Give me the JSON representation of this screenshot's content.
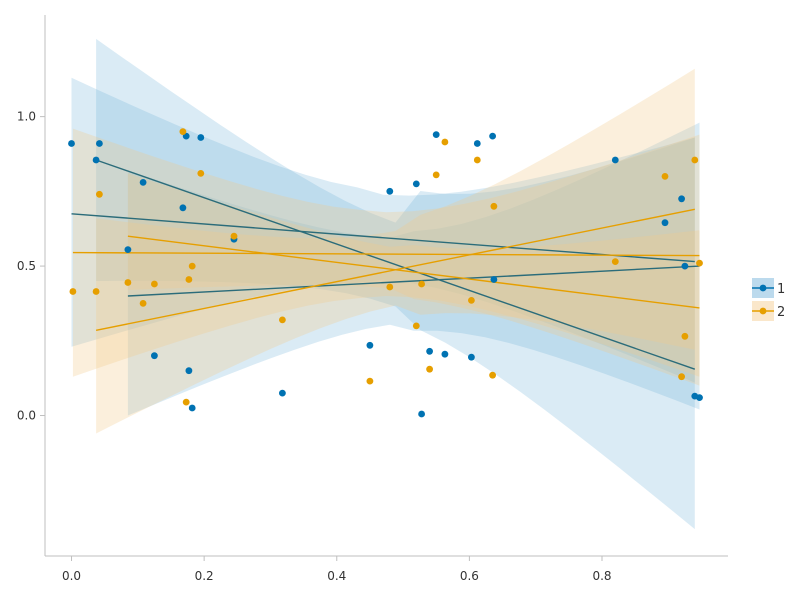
{
  "chart_data": {
    "type": "scatter",
    "xlim": [
      -0.04,
      0.99
    ],
    "ylim": [
      -0.47,
      1.34
    ],
    "x_ticks": [
      0.0,
      0.2,
      0.4,
      0.6,
      0.8
    ],
    "x_tick_labels": [
      "0.0",
      "0.2",
      "0.4",
      "0.6",
      "0.8"
    ],
    "y_ticks": [
      0.0,
      0.5,
      1.0
    ],
    "y_tick_labels": [
      "0.0",
      "0.5",
      "1.0"
    ],
    "grid": false,
    "legend_position": "right",
    "series": [
      {
        "name": "1",
        "color": "#0072b2",
        "points": [
          [
            0.0,
            0.91
          ],
          [
            0.037,
            0.855
          ],
          [
            0.042,
            0.91
          ],
          [
            0.085,
            0.555
          ],
          [
            0.108,
            0.78
          ],
          [
            0.125,
            0.2
          ],
          [
            0.168,
            0.695
          ],
          [
            0.173,
            0.935
          ],
          [
            0.177,
            0.15
          ],
          [
            0.182,
            0.025
          ],
          [
            0.195,
            0.93
          ],
          [
            0.245,
            0.59
          ],
          [
            0.318,
            0.075
          ],
          [
            0.45,
            0.235
          ],
          [
            0.48,
            0.75
          ],
          [
            0.52,
            0.775
          ],
          [
            0.528,
            0.005
          ],
          [
            0.54,
            0.215
          ],
          [
            0.55,
            0.94
          ],
          [
            0.563,
            0.205
          ],
          [
            0.603,
            0.195
          ],
          [
            0.612,
            0.91
          ],
          [
            0.635,
            0.935
          ],
          [
            0.637,
            0.455
          ],
          [
            0.82,
            0.855
          ],
          [
            0.895,
            0.645
          ],
          [
            0.92,
            0.725
          ],
          [
            0.925,
            0.5
          ],
          [
            0.94,
            0.065
          ],
          [
            0.947,
            0.06
          ]
        ],
        "fits": [
          {
            "x": [
              0.0,
              0.94
            ],
            "y": [
              0.675,
              0.515
            ],
            "band_upper": [
              1.13,
              0.93
            ],
            "band_lower": [
              0.23,
              0.11
            ]
          },
          {
            "x": [
              0.037,
              0.94
            ],
            "y": [
              0.855,
              0.155
            ],
            "band_upper": [
              1.26,
              0.93
            ],
            "band_lower": [
              0.45,
              -0.38
            ]
          },
          {
            "x": [
              0.085,
              0.947
            ],
            "y": [
              0.4,
              0.5
            ],
            "band_upper": [
              0.82,
              0.98
            ],
            "band_lower": [
              0.0,
              0.02
            ]
          }
        ]
      },
      {
        "name": "2",
        "color": "#e69f00",
        "points": [
          [
            0.002,
            0.415
          ],
          [
            0.037,
            0.415
          ],
          [
            0.042,
            0.74
          ],
          [
            0.085,
            0.445
          ],
          [
            0.108,
            0.375
          ],
          [
            0.125,
            0.44
          ],
          [
            0.168,
            0.95
          ],
          [
            0.173,
            0.045
          ],
          [
            0.177,
            0.455
          ],
          [
            0.182,
            0.5
          ],
          [
            0.195,
            0.81
          ],
          [
            0.245,
            0.6
          ],
          [
            0.318,
            0.32
          ],
          [
            0.45,
            0.115
          ],
          [
            0.48,
            0.43
          ],
          [
            0.52,
            0.3
          ],
          [
            0.528,
            0.44
          ],
          [
            0.54,
            0.155
          ],
          [
            0.55,
            0.805
          ],
          [
            0.563,
            0.915
          ],
          [
            0.603,
            0.385
          ],
          [
            0.612,
            0.855
          ],
          [
            0.635,
            0.135
          ],
          [
            0.637,
            0.7
          ],
          [
            0.82,
            0.515
          ],
          [
            0.895,
            0.8
          ],
          [
            0.92,
            0.13
          ],
          [
            0.925,
            0.265
          ],
          [
            0.94,
            0.855
          ],
          [
            0.947,
            0.51
          ]
        ],
        "fits": [
          {
            "x": [
              0.002,
              0.947
            ],
            "y": [
              0.545,
              0.535
            ],
            "band_upper": [
              0.96,
              0.94
            ],
            "band_lower": [
              0.13,
              0.13
            ]
          },
          {
            "x": [
              0.037,
              0.94
            ],
            "y": [
              0.285,
              0.69
            ],
            "band_upper": [
              0.66,
              1.16
            ],
            "band_lower": [
              -0.06,
              0.22
            ]
          },
          {
            "x": [
              0.085,
              0.947
            ],
            "y": [
              0.6,
              0.36
            ],
            "band_upper": [
              0.81,
              0.62
            ],
            "band_lower": [
              0.42,
              0.1
            ]
          }
        ]
      }
    ]
  }
}
